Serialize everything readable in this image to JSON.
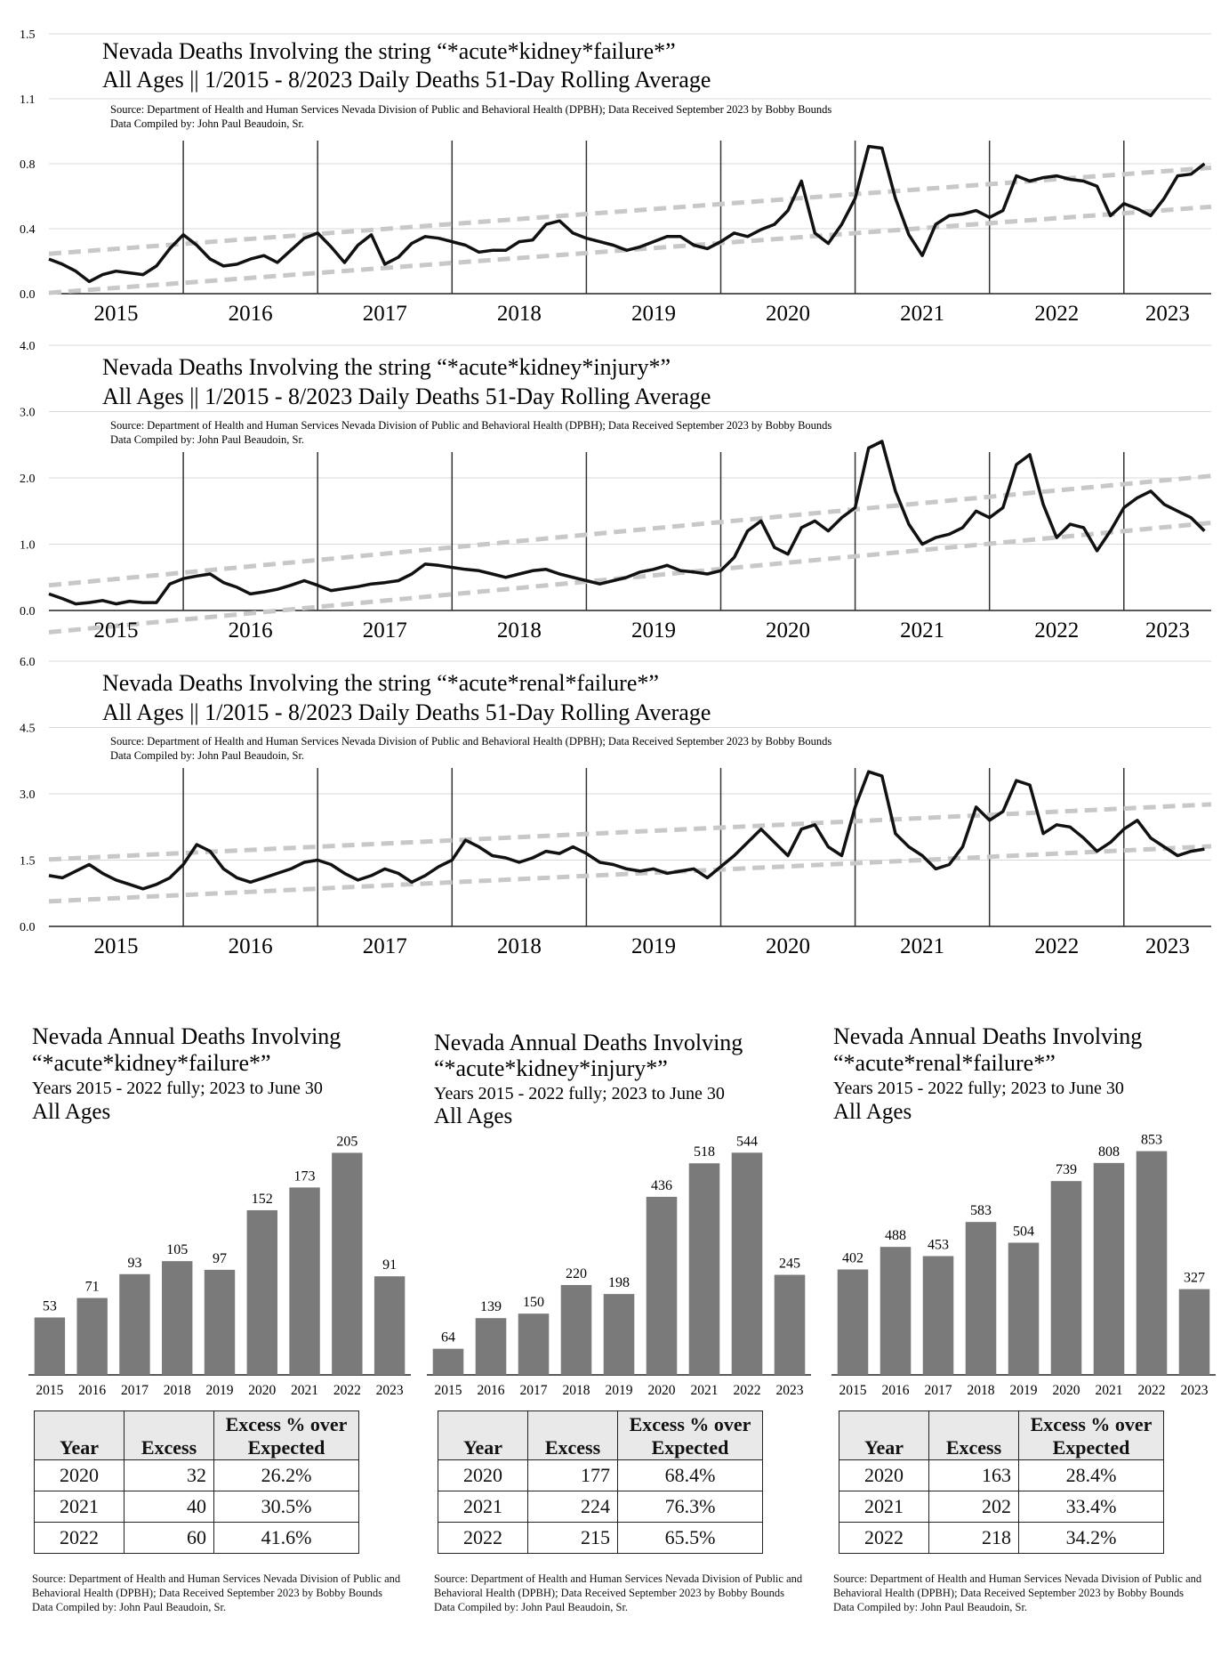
{
  "line_charts": [
    {
      "title_line1": "Nevada Deaths Involving the string “*acute*kidney*failure*”",
      "title_line2": "All Ages || 1/2015 - 8/2023 Daily Deaths 51-Day Rolling Average",
      "source": "Source:  Department of Health and Human Services Nevada Division of Public and Behavioral Health (DPBH); Data Received September 2023 by Bobby Bounds",
      "compiled": "Data Compiled by:  John Paul Beaudoin, Sr.",
      "y_ticks": [
        "0.0",
        "0.4",
        "0.8",
        "1.1",
        "1.5"
      ]
    },
    {
      "title_line1": "Nevada Deaths Involving the string “*acute*kidney*injury*”",
      "title_line2": "All Ages || 1/2015 - 8/2023 Daily Deaths 51-Day Rolling Average",
      "source": "Source:  Department of Health and Human Services Nevada Division of Public and Behavioral Health (DPBH); Data Received September 2023 by Bobby Bounds",
      "compiled": "Data Compiled by:  John Paul Beaudoin, Sr.",
      "y_ticks": [
        "0.0",
        "1.0",
        "2.0",
        "3.0",
        "4.0"
      ]
    },
    {
      "title_line1": "Nevada Deaths Involving the string “*acute*renal*failure*”",
      "title_line2": "All Ages || 1/2015 - 8/2023 Daily Deaths 51-Day Rolling Average",
      "source": "Source:  Department of Health and Human Services Nevada Division of Public and Behavioral Health (DPBH); Data Received September 2023 by Bobby Bounds",
      "compiled": "Data Compiled by:  John Paul Beaudoin, Sr.",
      "y_ticks": [
        "0.0",
        "1.5",
        "3.0",
        "4.5",
        "6.0"
      ]
    }
  ],
  "bar_charts": [
    {
      "title_line1": "Nevada Annual Deaths Involving",
      "title_line2": "“*acute*kidney*failure*”",
      "subtitle": "Years 2015 - 2022 fully; 2023 to June 30",
      "ages": "All Ages"
    },
    {
      "title_line1": "Nevada Annual Deaths Involving",
      "title_line2": "“*acute*kidney*injury*”",
      "subtitle": "Years 2015 - 2022 fully; 2023 to June 30",
      "ages": "All Ages"
    },
    {
      "title_line1": "Nevada Annual Deaths Involving",
      "title_line2": "“*acute*renal*failure*”",
      "subtitle": "Years 2015 - 2022 fully; 2023 to June 30",
      "ages": "All Ages"
    }
  ],
  "tables": [
    {
      "headers": {
        "year": "Year",
        "excess": "Excess",
        "pct_line1": "Excess % over",
        "pct_line2": "Expected"
      },
      "rows": [
        {
          "year": "2020",
          "excess": "32",
          "pct": "26.2%"
        },
        {
          "year": "2021",
          "excess": "40",
          "pct": "30.5%"
        },
        {
          "year": "2022",
          "excess": "60",
          "pct": "41.6%"
        }
      ]
    },
    {
      "headers": {
        "year": "Year",
        "excess": "Excess",
        "pct_line1": "Excess % over",
        "pct_line2": "Expected"
      },
      "rows": [
        {
          "year": "2020",
          "excess": "177",
          "pct": "68.4%"
        },
        {
          "year": "2021",
          "excess": "224",
          "pct": "76.3%"
        },
        {
          "year": "2022",
          "excess": "215",
          "pct": "65.5%"
        }
      ]
    },
    {
      "headers": {
        "year": "Year",
        "excess": "Excess",
        "pct_line1": "Excess % over",
        "pct_line2": "Expected"
      },
      "rows": [
        {
          "year": "2020",
          "excess": "163",
          "pct": "28.4%"
        },
        {
          "year": "2021",
          "excess": "202",
          "pct": "33.4%"
        },
        {
          "year": "2022",
          "excess": "218",
          "pct": "34.2%"
        }
      ]
    }
  ],
  "notes": [
    {
      "source": "Source:  Department of Health and Human Services Nevada Division of Public and Behavioral Health (DPBH); Data Received September 2023 by Bobby Bounds",
      "compiled": "Data Compiled by:  John Paul Beaudoin, Sr."
    },
    {
      "source": "Source:  Department of Health and Human Services Nevada Division of Public and Behavioral Health (DPBH); Data Received September 2023 by Bobby Bounds",
      "compiled": "Data Compiled by:  John Paul Beaudoin, Sr."
    },
    {
      "source": "Source:  Department of Health and Human Services Nevada Division of Public and Behavioral Health (DPBH); Data Received September 2023 by Bobby Bounds",
      "compiled": "Data Compiled by:  John Paul Beaudoin, Sr."
    }
  ],
  "colors": {
    "line": "#111111",
    "trend": "#c8c8c8",
    "bar": "#7a7a7a",
    "grid": "#d8d8d8",
    "table_header": "#e9e9e9"
  },
  "chart_data": [
    {
      "type": "line",
      "title": "Nevada Deaths Involving the string “*acute*kidney*failure*” All Ages || 1/2015 - 8/2023 Daily Deaths 51-Day Rolling Average",
      "x_tick_labels": [
        "2015",
        "2016",
        "2017",
        "2018",
        "2019",
        "2020",
        "2021",
        "2022",
        "2023"
      ],
      "ylim": [
        0,
        1.5
      ],
      "grid": true,
      "series": [
        {
          "x": [
            2015.0,
            2015.1,
            2015.2,
            2015.3,
            2015.4,
            2015.5,
            2015.6,
            2015.7,
            2015.8,
            2015.9,
            2016.0,
            2016.1,
            2016.2,
            2016.3,
            2016.4,
            2016.5,
            2016.6,
            2016.7,
            2016.8,
            2016.9,
            2017.0,
            2017.1,
            2017.2,
            2017.3,
            2017.4,
            2017.5,
            2017.6,
            2017.7,
            2017.8,
            2017.9,
            2018.0,
            2018.1,
            2018.2,
            2018.3,
            2018.4,
            2018.5,
            2018.6,
            2018.7,
            2018.8,
            2018.9,
            2019.0,
            2019.1,
            2019.2,
            2019.3,
            2019.4,
            2019.5,
            2019.6,
            2019.7,
            2019.8,
            2019.9,
            2020.0,
            2020.1,
            2020.2,
            2020.3,
            2020.4,
            2020.5,
            2020.6,
            2020.7,
            2020.8,
            2020.9,
            2021.0,
            2021.1,
            2021.2,
            2021.3,
            2021.4,
            2021.5,
            2021.6,
            2021.7,
            2021.8,
            2021.9,
            2022.0,
            2022.1,
            2022.2,
            2022.3,
            2022.4,
            2022.5,
            2022.6,
            2022.7,
            2022.8,
            2022.9,
            2023.0,
            2023.1,
            2023.2,
            2023.3,
            2023.4,
            2023.5,
            2023.6
          ],
          "y": [
            0.2,
            0.17,
            0.13,
            0.07,
            0.11,
            0.13,
            0.12,
            0.11,
            0.16,
            0.26,
            0.34,
            0.28,
            0.2,
            0.16,
            0.17,
            0.2,
            0.22,
            0.18,
            0.25,
            0.32,
            0.35,
            0.27,
            0.18,
            0.28,
            0.34,
            0.17,
            0.21,
            0.29,
            0.33,
            0.32,
            0.3,
            0.28,
            0.24,
            0.25,
            0.25,
            0.3,
            0.31,
            0.4,
            0.42,
            0.35,
            0.32,
            0.3,
            0.28,
            0.25,
            0.27,
            0.3,
            0.33,
            0.33,
            0.28,
            0.26,
            0.3,
            0.35,
            0.33,
            0.37,
            0.4,
            0.48,
            0.65,
            0.35,
            0.29,
            0.4,
            0.55,
            0.85,
            0.84,
            0.55,
            0.34,
            0.22,
            0.4,
            0.45,
            0.46,
            0.48,
            0.44,
            0.48,
            0.68,
            0.65,
            0.67,
            0.68,
            0.66,
            0.65,
            0.62,
            0.45,
            0.52,
            0.49,
            0.45,
            0.55,
            0.68,
            0.69,
            0.75
          ]
        }
      ]
    },
    {
      "type": "line",
      "title": "Nevada Deaths Involving the string “*acute*kidney*injury*” All Ages || 1/2015 - 8/2023 Daily Deaths 51-Day Rolling Average",
      "x_tick_labels": [
        "2015",
        "2016",
        "2017",
        "2018",
        "2019",
        "2020",
        "2021",
        "2022",
        "2023"
      ],
      "ylim": [
        0,
        4.0
      ],
      "grid": true,
      "series": [
        {
          "x": [
            2015.0,
            2015.1,
            2015.2,
            2015.3,
            2015.4,
            2015.5,
            2015.6,
            2015.7,
            2015.8,
            2015.9,
            2016.0,
            2016.1,
            2016.2,
            2016.3,
            2016.4,
            2016.5,
            2016.6,
            2016.7,
            2016.8,
            2016.9,
            2017.0,
            2017.1,
            2017.2,
            2017.3,
            2017.4,
            2017.5,
            2017.6,
            2017.7,
            2017.8,
            2017.9,
            2018.0,
            2018.1,
            2018.2,
            2018.3,
            2018.4,
            2018.5,
            2018.6,
            2018.7,
            2018.8,
            2018.9,
            2019.0,
            2019.1,
            2019.2,
            2019.3,
            2019.4,
            2019.5,
            2019.6,
            2019.7,
            2019.8,
            2019.9,
            2020.0,
            2020.1,
            2020.2,
            2020.3,
            2020.4,
            2020.5,
            2020.6,
            2020.7,
            2020.8,
            2020.9,
            2021.0,
            2021.1,
            2021.2,
            2021.3,
            2021.4,
            2021.5,
            2021.6,
            2021.7,
            2021.8,
            2021.9,
            2022.0,
            2022.1,
            2022.2,
            2022.3,
            2022.4,
            2022.5,
            2022.6,
            2022.7,
            2022.8,
            2022.9,
            2023.0,
            2023.1,
            2023.2,
            2023.3,
            2023.4,
            2023.5,
            2023.6
          ],
          "y": [
            0.25,
            0.18,
            0.1,
            0.12,
            0.15,
            0.1,
            0.14,
            0.12,
            0.12,
            0.4,
            0.48,
            0.52,
            0.55,
            0.42,
            0.35,
            0.25,
            0.28,
            0.32,
            0.38,
            0.45,
            0.38,
            0.3,
            0.33,
            0.36,
            0.4,
            0.42,
            0.45,
            0.55,
            0.7,
            0.68,
            0.65,
            0.62,
            0.6,
            0.55,
            0.5,
            0.55,
            0.6,
            0.62,
            0.55,
            0.5,
            0.45,
            0.4,
            0.45,
            0.5,
            0.58,
            0.62,
            0.68,
            0.6,
            0.58,
            0.55,
            0.6,
            0.8,
            1.2,
            1.35,
            0.95,
            0.85,
            1.25,
            1.35,
            1.2,
            1.4,
            1.55,
            2.45,
            2.55,
            1.8,
            1.3,
            1.0,
            1.1,
            1.15,
            1.25,
            1.5,
            1.4,
            1.55,
            2.2,
            2.35,
            1.6,
            1.1,
            1.3,
            1.25,
            0.9,
            1.2,
            1.55,
            1.7,
            1.8,
            1.6,
            1.5,
            1.4,
            1.2
          ]
        }
      ]
    },
    {
      "type": "line",
      "title": "Nevada Deaths Involving the string “*acute*renal*failure*” All Ages || 1/2015 - 8/2023 Daily Deaths 51-Day Rolling Average",
      "x_tick_labels": [
        "2015",
        "2016",
        "2017",
        "2018",
        "2019",
        "2020",
        "2021",
        "2022",
        "2023"
      ],
      "ylim": [
        0,
        6.0
      ],
      "grid": true,
      "series": [
        {
          "x": [
            2015.0,
            2015.1,
            2015.2,
            2015.3,
            2015.4,
            2015.5,
            2015.6,
            2015.7,
            2015.8,
            2015.9,
            2016.0,
            2016.1,
            2016.2,
            2016.3,
            2016.4,
            2016.5,
            2016.6,
            2016.7,
            2016.8,
            2016.9,
            2017.0,
            2017.1,
            2017.2,
            2017.3,
            2017.4,
            2017.5,
            2017.6,
            2017.7,
            2017.8,
            2017.9,
            2018.0,
            2018.1,
            2018.2,
            2018.3,
            2018.4,
            2018.5,
            2018.6,
            2018.7,
            2018.8,
            2018.9,
            2019.0,
            2019.1,
            2019.2,
            2019.3,
            2019.4,
            2019.5,
            2019.6,
            2019.7,
            2019.8,
            2019.9,
            2020.0,
            2020.1,
            2020.2,
            2020.3,
            2020.4,
            2020.5,
            2020.6,
            2020.7,
            2020.8,
            2020.9,
            2021.0,
            2021.1,
            2021.2,
            2021.3,
            2021.4,
            2021.5,
            2021.6,
            2021.7,
            2021.8,
            2021.9,
            2022.0,
            2022.1,
            2022.2,
            2022.3,
            2022.4,
            2022.5,
            2022.6,
            2022.7,
            2022.8,
            2022.9,
            2023.0,
            2023.1,
            2023.2,
            2023.3,
            2023.4,
            2023.5,
            2023.6
          ],
          "y": [
            1.15,
            1.1,
            1.25,
            1.4,
            1.2,
            1.05,
            0.95,
            0.85,
            0.95,
            1.1,
            1.4,
            1.85,
            1.7,
            1.3,
            1.1,
            1.0,
            1.1,
            1.2,
            1.3,
            1.45,
            1.5,
            1.4,
            1.2,
            1.05,
            1.15,
            1.3,
            1.2,
            1.0,
            1.15,
            1.35,
            1.5,
            1.95,
            1.8,
            1.6,
            1.55,
            1.45,
            1.55,
            1.7,
            1.65,
            1.8,
            1.65,
            1.45,
            1.4,
            1.3,
            1.25,
            1.3,
            1.2,
            1.25,
            1.3,
            1.1,
            1.35,
            1.6,
            1.9,
            2.2,
            1.9,
            1.6,
            2.2,
            2.3,
            1.8,
            1.6,
            2.7,
            3.5,
            3.4,
            2.1,
            1.8,
            1.6,
            1.3,
            1.4,
            1.8,
            2.7,
            2.4,
            2.6,
            3.3,
            3.2,
            2.1,
            2.3,
            2.25,
            2.0,
            1.7,
            1.9,
            2.2,
            2.4,
            2.0,
            1.8,
            1.6,
            1.7,
            1.75
          ]
        }
      ]
    },
    {
      "type": "bar",
      "title": "Nevada Annual Deaths Involving “*acute*kidney*failure*” Years 2015 - 2022 fully; 2023 to June 30 All Ages",
      "categories": [
        "2015",
        "2016",
        "2017",
        "2018",
        "2019",
        "2020",
        "2021",
        "2022",
        "2023"
      ],
      "values": [
        53,
        71,
        93,
        105,
        97,
        152,
        173,
        205,
        91
      ],
      "ylim": [
        0,
        230
      ]
    },
    {
      "type": "bar",
      "title": "Nevada Annual Deaths Involving “*acute*kidney*injury*” Years 2015 - 2022 fully; 2023 to June 30 All Ages",
      "categories": [
        "2015",
        "2016",
        "2017",
        "2018",
        "2019",
        "2020",
        "2021",
        "2022",
        "2023"
      ],
      "values": [
        64,
        139,
        150,
        220,
        198,
        436,
        518,
        544,
        245
      ],
      "ylim": [
        0,
        610
      ]
    },
    {
      "type": "bar",
      "title": "Nevada Annual Deaths Involving “*acute*renal*failure*” Years 2015 - 2022 fully; 2023 to June 30 All Ages",
      "categories": [
        "2015",
        "2016",
        "2017",
        "2018",
        "2019",
        "2020",
        "2021",
        "2022",
        "2023"
      ],
      "values": [
        402,
        488,
        453,
        583,
        504,
        739,
        808,
        853,
        327
      ],
      "ylim": [
        0,
        950
      ]
    }
  ]
}
